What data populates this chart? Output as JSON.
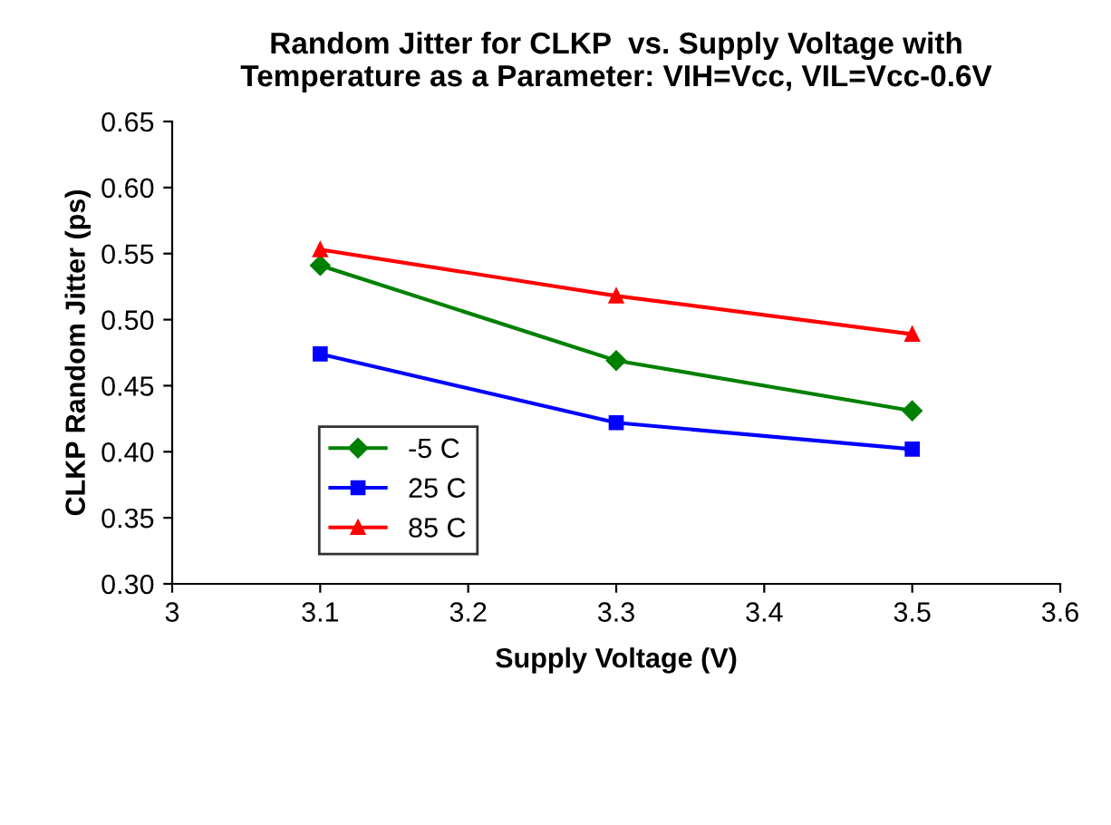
{
  "chart_data": {
    "type": "line",
    "title": "Random Jitter for CLKP  vs. Supply Voltage with\nTemperature as a Parameter: VIH=Vcc, VIL=Vcc-0.6V",
    "xlabel": "Supply Voltage (V)",
    "ylabel": "CLKP Random Jitter (ps)",
    "x": [
      3.1,
      3.3,
      3.5
    ],
    "series": [
      {
        "name": "-5 C",
        "color": "#008000",
        "marker": "diamond",
        "values": [
          0.541,
          0.469,
          0.431
        ]
      },
      {
        "name": "25 C",
        "color": "#0000ff",
        "marker": "square",
        "values": [
          0.474,
          0.422,
          0.402
        ]
      },
      {
        "name": "85 C",
        "color": "#ff0000",
        "marker": "triangle",
        "values": [
          0.553,
          0.518,
          0.489
        ]
      }
    ],
    "xlim": [
      3,
      3.6
    ],
    "xticks": [
      3,
      3.1,
      3.2,
      3.3,
      3.4,
      3.5,
      3.6
    ],
    "ylim": [
      0.3,
      0.65
    ],
    "yticks": [
      {
        "value": 0.3,
        "label": "0.30"
      },
      {
        "value": 0.35,
        "label": "0.35"
      },
      {
        "value": 0.4,
        "label": "0.40"
      },
      {
        "value": 0.45,
        "label": "0.45"
      },
      {
        "value": 0.5,
        "label": "0.50"
      },
      {
        "value": 0.55,
        "label": "0.55"
      },
      {
        "value": 0.6,
        "label": "0.60"
      },
      {
        "value": 0.65,
        "label": "0.65"
      }
    ],
    "grid": false,
    "legend": "left",
    "line_style": "solid"
  }
}
